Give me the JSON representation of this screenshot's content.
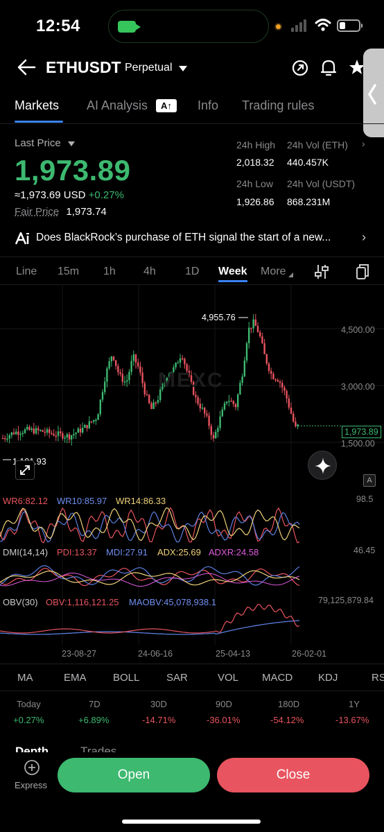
{
  "status_bar": {
    "time": "12:54"
  },
  "header": {
    "symbol": "ETHUSDT",
    "contract": "Perpetual"
  },
  "tabs": [
    {
      "label": "Markets",
      "active": true
    },
    {
      "label": "AI Analysis",
      "badge": "A↑"
    },
    {
      "label": "Info"
    },
    {
      "label": "Trading rules"
    }
  ],
  "price": {
    "last_price_label": "Last Price",
    "last_price": "1,973.89",
    "usd_equiv": "≈1,973.69 USD",
    "change": "+0.27%",
    "fair_label": "Fair Price",
    "fair_value": "1,973.74"
  },
  "stats": {
    "high_label": "24h High",
    "high_value": "2,018.32",
    "vol_eth_label": "24h Vol (ETH)",
    "vol_eth_value": "440.457K",
    "low_label": "24h Low",
    "low_value": "1,926.86",
    "vol_usdt_label": "24h Vol  (USDT)",
    "vol_usdt_value": "868.231M"
  },
  "news": {
    "text": "Does BlackRock’s purchase of ETH signal the start of a new..."
  },
  "intervals": [
    "Line",
    "15m",
    "1h",
    "4h",
    "1D",
    "Week",
    "More"
  ],
  "active_interval": "Week",
  "chart": {
    "y_ticks": [
      "4,500.00",
      "3,000.00",
      "1,500.00"
    ],
    "current_price_tag": "1,973.89",
    "high_label": "4,955.76",
    "low_label": "1,191.93",
    "watermark": "MEXC",
    "x_ticks": [
      "23-08-27",
      "24-06-16",
      "25-04-13",
      "26-02-01"
    ],
    "wr": {
      "wr6": "WR6:82.12",
      "wr10": "WR10:85.97",
      "wr14": "WR14:86.33",
      "max": "98.5"
    },
    "dmi": {
      "name": "DMI(14,14)",
      "pdi": "PDI:13.37",
      "mdi": "MDI:27.91",
      "adx": "ADX:25.69",
      "adxr": "ADXR:24.58",
      "max": "46.45"
    },
    "obv": {
      "name": "OBV(30)",
      "obv": "OBV:1,116,121.25",
      "maobv": "MAOBV:45,078,938.1",
      "max": "79,125,879.84"
    },
    "a_badge": "A",
    "colors": {
      "up": "#3db970",
      "down": "#e8545f",
      "wr6": "#e8545f",
      "wr10": "#5b7fe0",
      "wr14": "#f0d27a",
      "adx": "#f0d27a",
      "adxr": "#e05adf"
    }
  },
  "indicator_tabs": [
    "MA",
    "EMA",
    "BOLL",
    "SAR",
    "VOL",
    "MACD",
    "KDJ",
    "RSI"
  ],
  "performance": [
    {
      "label": "Today",
      "value": "+0.27%",
      "dir": "up"
    },
    {
      "label": "7D",
      "value": "+6.89%",
      "dir": "up"
    },
    {
      "label": "30D",
      "value": "-14.71%",
      "dir": "down"
    },
    {
      "label": "90D",
      "value": "-36.01%",
      "dir": "down"
    },
    {
      "label": "180D",
      "value": "-54.12%",
      "dir": "down"
    },
    {
      "label": "1Y",
      "value": "-13.67%",
      "dir": "down"
    }
  ],
  "lower_tabs": [
    "Depth",
    "Trades"
  ],
  "bottom": {
    "express_label": "Express",
    "open_label": "Open",
    "close_label": "Close"
  }
}
